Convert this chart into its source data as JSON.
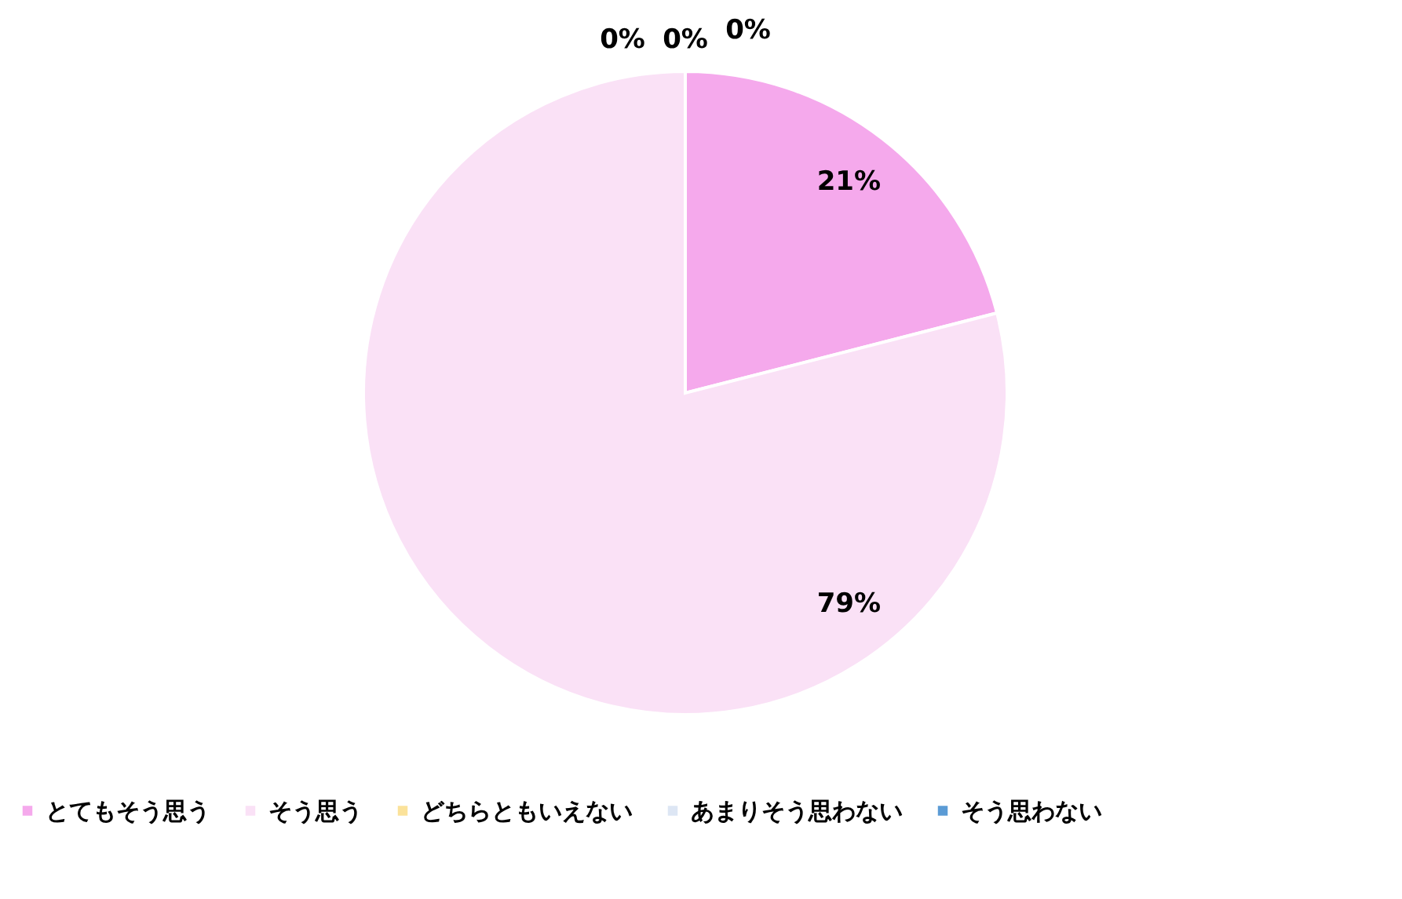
{
  "chart_data": {
    "type": "pie",
    "categories": [
      "とてもそう思う",
      "そう思う",
      "どちらともいえない",
      "あまりそう思わない",
      "そう思わない"
    ],
    "values": [
      21,
      79,
      0,
      0,
      0
    ],
    "colors": [
      "#f5a9ec",
      "#fae1f6",
      "#fbe29a",
      "#dde6f4",
      "#5b9bd5"
    ],
    "value_labels": [
      "21%",
      "79%",
      "0%",
      "0%",
      "0%"
    ],
    "legend": "bottom"
  }
}
